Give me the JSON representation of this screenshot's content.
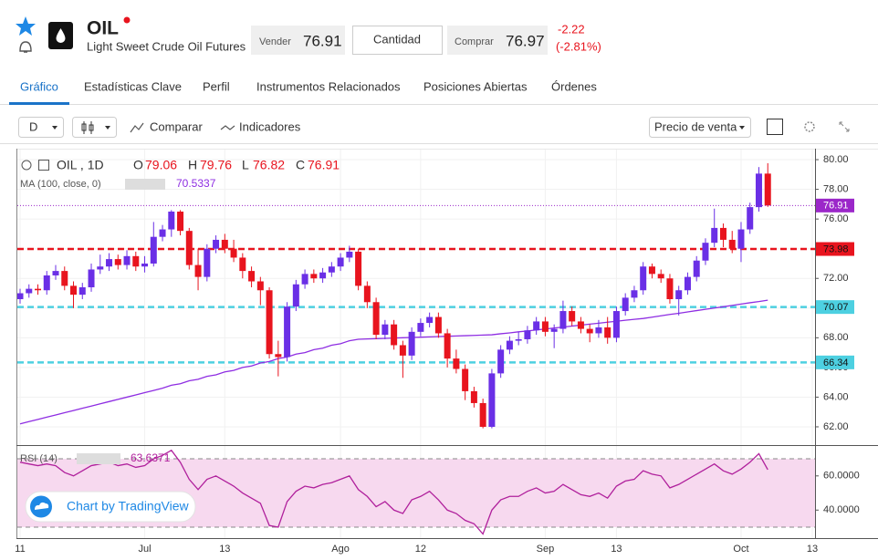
{
  "header": {
    "symbol": "OIL",
    "name": "Light Sweet Crude Oil Futures",
    "sell_label": "Vender",
    "sell": 76.91,
    "quantity": "Cantidad",
    "buy_label": "Comprar",
    "buy": 76.97,
    "change": -2.22,
    "change_pct": "(-2.81%)"
  },
  "tabs": [
    "Gráfico",
    "Estadísticas Clave",
    "Perfil",
    "Instrumentos Relacionados",
    "Posiciones Abiertas",
    "Órdenes"
  ],
  "toolbar": {
    "interval": "D",
    "compare": "Comparar",
    "indicators": "Indicadores",
    "price_type": "Precio de venta"
  },
  "badge": "Chart by TradingView",
  "chart_data": {
    "type": "candlestick",
    "legend": {
      "symbol": "OIL , 1D",
      "labels": [
        "O",
        "H",
        "L",
        "C"
      ]
    },
    "categories": [
      "11",
      null,
      null,
      null,
      null,
      null,
      null,
      null,
      null,
      null,
      null,
      null,
      null,
      null,
      "Jul",
      null,
      null,
      null,
      null,
      null,
      null,
      null,
      null,
      "13",
      null,
      null,
      null,
      null,
      null,
      null,
      null,
      null,
      null,
      null,
      null,
      null,
      "Ago",
      null,
      null,
      null,
      null,
      null,
      null,
      null,
      null,
      "12",
      null,
      null,
      null,
      null,
      null,
      null,
      null,
      null,
      null,
      null,
      null,
      null,
      null,
      "Sep",
      null,
      null,
      null,
      null,
      null,
      null,
      null,
      "13",
      null,
      null,
      null,
      null,
      null,
      null,
      null,
      null,
      null,
      null,
      null,
      null,
      null,
      "Oct",
      null,
      null,
      null,
      null,
      null,
      null,
      null,
      "13"
    ],
    "open": [
      70.6,
      71.0,
      71.3,
      71.2,
      72.2,
      72.5,
      71.5,
      70.9,
      71.4,
      72.6,
      72.8,
      73.3,
      72.9,
      73.5,
      72.8,
      73.0,
      74.8,
      75.3,
      76.5,
      75.2,
      72.9,
      72.1,
      74.0,
      74.6,
      74.0,
      73.4,
      72.5,
      71.8,
      71.2,
      66.9,
      66.7,
      70.1,
      71.6,
      72.3,
      72.0,
      72.4,
      72.8,
      73.4,
      73.8,
      71.5,
      70.4,
      68.2,
      68.9,
      67.5,
      66.8,
      68.4,
      69.0,
      69.4,
      68.3,
      66.6,
      65.9,
      64.4,
      63.6,
      62.0,
      65.6,
      67.2,
      67.8,
      67.9,
      68.5,
      69.1,
      68.4,
      68.6,
      69.8,
      69.1,
      68.6,
      68.3,
      68.7,
      68.0,
      69.8,
      70.7,
      71.2,
      72.8,
      72.3,
      72.0,
      70.6,
      71.2,
      72.1,
      73.2,
      74.4,
      75.4,
      74.6,
      74.0,
      75.3,
      76.8,
      79.06,
      null,
      null,
      null,
      null,
      null
    ],
    "high": [
      71.3,
      71.6,
      71.6,
      72.5,
      72.9,
      72.8,
      71.8,
      71.7,
      73.0,
      73.6,
      73.7,
      73.6,
      73.9,
      73.8,
      73.5,
      75.8,
      75.6,
      76.6,
      76.6,
      75.4,
      74.0,
      74.3,
      74.9,
      75.0,
      74.6,
      73.7,
      72.8,
      72.1,
      71.4,
      67.8,
      70.4,
      71.9,
      72.6,
      72.6,
      72.7,
      73.1,
      73.7,
      74.2,
      74.0,
      71.8,
      70.7,
      69.2,
      69.2,
      67.8,
      68.7,
      69.3,
      69.7,
      69.7,
      68.6,
      67.2,
      66.2,
      64.7,
      63.9,
      65.9,
      67.5,
      68.1,
      68.4,
      68.8,
      69.4,
      69.4,
      68.9,
      70.5,
      70.1,
      69.4,
      68.9,
      69.2,
      69.4,
      70.1,
      71.0,
      71.5,
      73.1,
      73.0,
      72.6,
      72.3,
      71.5,
      72.4,
      73.5,
      74.7,
      76.7,
      75.7,
      75.2,
      75.8,
      77.1,
      79.5,
      79.76,
      null,
      null,
      null,
      null,
      null
    ],
    "low": [
      70.3,
      70.7,
      70.9,
      70.9,
      71.9,
      71.2,
      70.0,
      70.6,
      71.1,
      72.3,
      72.5,
      72.6,
      72.6,
      72.5,
      72.4,
      72.8,
      74.5,
      74.8,
      74.9,
      72.6,
      71.2,
      71.8,
      73.7,
      73.7,
      73.1,
      72.0,
      71.4,
      70.2,
      66.6,
      65.4,
      66.4,
      69.8,
      71.3,
      71.7,
      71.7,
      72.1,
      72.5,
      73.1,
      71.2,
      70.0,
      67.9,
      67.9,
      67.2,
      65.3,
      66.5,
      68.1,
      68.7,
      68.0,
      66.0,
      65.6,
      63.8,
      63.3,
      61.9,
      61.9,
      65.3,
      66.9,
      67.5,
      67.6,
      68.2,
      68.1,
      67.3,
      68.3,
      68.8,
      68.3,
      67.7,
      68.0,
      67.6,
      67.7,
      69.5,
      70.4,
      70.9,
      72.0,
      71.7,
      70.3,
      69.5,
      70.9,
      71.8,
      72.9,
      74.1,
      74.1,
      73.7,
      73.1,
      75.0,
      76.5,
      76.82,
      null,
      null,
      null,
      null,
      null
    ],
    "close": [
      71.0,
      71.3,
      71.2,
      72.2,
      72.5,
      71.5,
      70.9,
      71.4,
      72.6,
      72.8,
      73.3,
      72.9,
      73.5,
      72.8,
      73.0,
      74.8,
      75.3,
      76.5,
      75.2,
      72.9,
      72.1,
      74.0,
      74.6,
      74.0,
      73.4,
      72.5,
      71.8,
      71.2,
      66.9,
      66.7,
      70.1,
      71.6,
      72.3,
      72.0,
      72.4,
      72.8,
      73.4,
      73.8,
      71.5,
      70.4,
      68.2,
      68.9,
      67.5,
      66.8,
      68.4,
      69.0,
      69.4,
      68.3,
      66.6,
      65.9,
      64.4,
      63.6,
      62.0,
      65.6,
      67.2,
      67.8,
      67.9,
      68.5,
      69.1,
      68.4,
      68.6,
      69.8,
      69.1,
      68.6,
      68.3,
      68.7,
      68.0,
      69.8,
      70.7,
      71.2,
      72.8,
      72.3,
      72.0,
      70.6,
      71.2,
      72.1,
      73.2,
      74.4,
      75.4,
      74.6,
      74.0,
      75.3,
      76.8,
      79.06,
      76.91,
      null,
      null,
      null,
      null,
      null
    ],
    "up_color": "#6a2fe6",
    "down_color": "#e8141e",
    "last_color": "#9b27c9",
    "ma": {
      "name": "MA (100, close, 0)",
      "color": "#8e2de2",
      "values": [
        62.2,
        62.35,
        62.5,
        62.65,
        62.8,
        62.95,
        63.1,
        63.25,
        63.4,
        63.55,
        63.7,
        63.85,
        64.0,
        64.15,
        64.3,
        64.45,
        64.6,
        64.8,
        64.9,
        65.1,
        65.2,
        65.4,
        65.5,
        65.7,
        65.8,
        66.0,
        66.1,
        66.3,
        66.4,
        66.6,
        66.7,
        66.9,
        67.0,
        67.2,
        67.3,
        67.5,
        67.6,
        67.8,
        67.9,
        67.92,
        67.94,
        67.96,
        67.98,
        68.0,
        68.02,
        68.04,
        68.06,
        68.08,
        68.1,
        68.12,
        68.14,
        68.16,
        68.18,
        68.2,
        68.27,
        68.33,
        68.4,
        68.46,
        68.53,
        68.59,
        68.66,
        68.72,
        68.79,
        68.85,
        68.92,
        68.98,
        69.05,
        69.11,
        69.18,
        69.24,
        69.3,
        69.39,
        69.48,
        69.57,
        69.65,
        69.74,
        69.83,
        69.92,
        70.0,
        70.09,
        70.18,
        70.27,
        70.36,
        70.44,
        70.5337,
        null,
        null,
        null,
        null,
        null
      ]
    },
    "price_lines": [
      {
        "value": 73.98,
        "color": "#e8141e"
      },
      {
        "value": 70.07,
        "color": "#4dd0e1"
      },
      {
        "value": 66.34,
        "color": "#4dd0e1"
      }
    ],
    "ylim": [
      60.77,
      80.74
    ],
    "yticks": [
      {
        "value": 62,
        "label": "62.00"
      },
      {
        "value": 64,
        "label": "64.00"
      },
      {
        "value": 66,
        "label": "66.00"
      },
      {
        "value": 68,
        "label": "68.00"
      },
      {
        "value": 70,
        "label": "70.00"
      },
      {
        "value": 72,
        "label": "72.00"
      },
      {
        "value": 74,
        "label": "74.00"
      },
      {
        "value": 76,
        "label": "76.00"
      },
      {
        "value": 78,
        "label": "78.00"
      },
      {
        "value": 80,
        "label": "80.00"
      }
    ],
    "grid": true,
    "rsi": {
      "name": "RSI (14)",
      "color": "#b0209c",
      "band_color": "#f7d9ef",
      "bands": [
        30,
        70
      ],
      "ylim": [
        23.6,
        77.5
      ],
      "yticks": [
        {
          "value": 40,
          "label": "40.0000"
        },
        {
          "value": 60,
          "label": "60.0000"
        }
      ],
      "values": [
        68,
        67,
        66,
        67,
        66,
        62,
        60,
        63,
        66,
        67,
        68,
        66,
        67,
        65,
        66,
        70,
        72,
        75,
        68,
        58,
        52,
        58,
        60,
        57,
        54,
        50,
        47,
        44,
        31,
        30,
        45,
        51,
        54,
        53,
        55,
        56,
        58,
        60,
        52,
        48,
        42,
        45,
        40,
        38,
        46,
        48,
        51,
        46,
        40,
        38,
        34,
        32,
        26,
        40,
        46,
        48,
        48,
        51,
        53,
        50,
        51,
        55,
        52,
        49,
        48,
        50,
        47,
        54,
        57,
        58,
        63,
        61,
        60,
        53,
        55,
        58,
        61,
        64,
        67,
        63,
        61,
        64,
        68,
        73,
        63.6371,
        null,
        null,
        null,
        null,
        null
      ]
    }
  }
}
